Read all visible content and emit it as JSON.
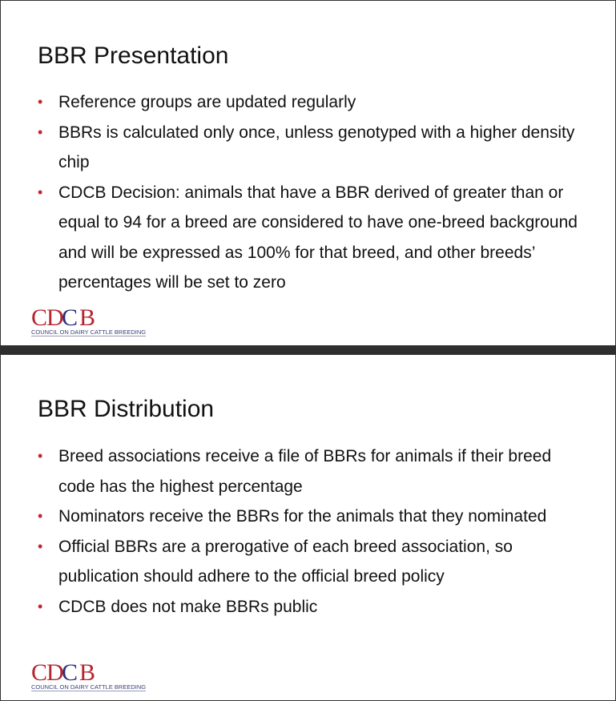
{
  "slides": [
    {
      "title": "BBR Presentation",
      "bullets": [
        "Reference groups are updated regularly",
        "BBRs is calculated only once, unless genotyped with a higher density chip",
        "CDCB Decision: animals that have a BBR derived of greater than or equal to 94 for a breed are considered to have one-breed background and will be expressed as 100% for that breed, and other breeds’ percentages will be set to zero"
      ]
    },
    {
      "title": "BBR Distribution",
      "bullets": [
        "Breed associations receive a file of BBRs for animals if their breed code has the highest percentage",
        "Nominators receive the BBRs for the animals that they nominated",
        "Official BBRs are a prerogative of each breed association, so publication should adhere to the official breed policy",
        "CDCB does not make BBRs public"
      ]
    }
  ],
  "logo": {
    "text": "CDCB",
    "subtitle": "COUNCIL ON DAIRY CATTLE BREEDING",
    "colors": {
      "red": "#b5252f",
      "blue": "#2a2f7a"
    }
  },
  "bullet_color": "#c0282d"
}
